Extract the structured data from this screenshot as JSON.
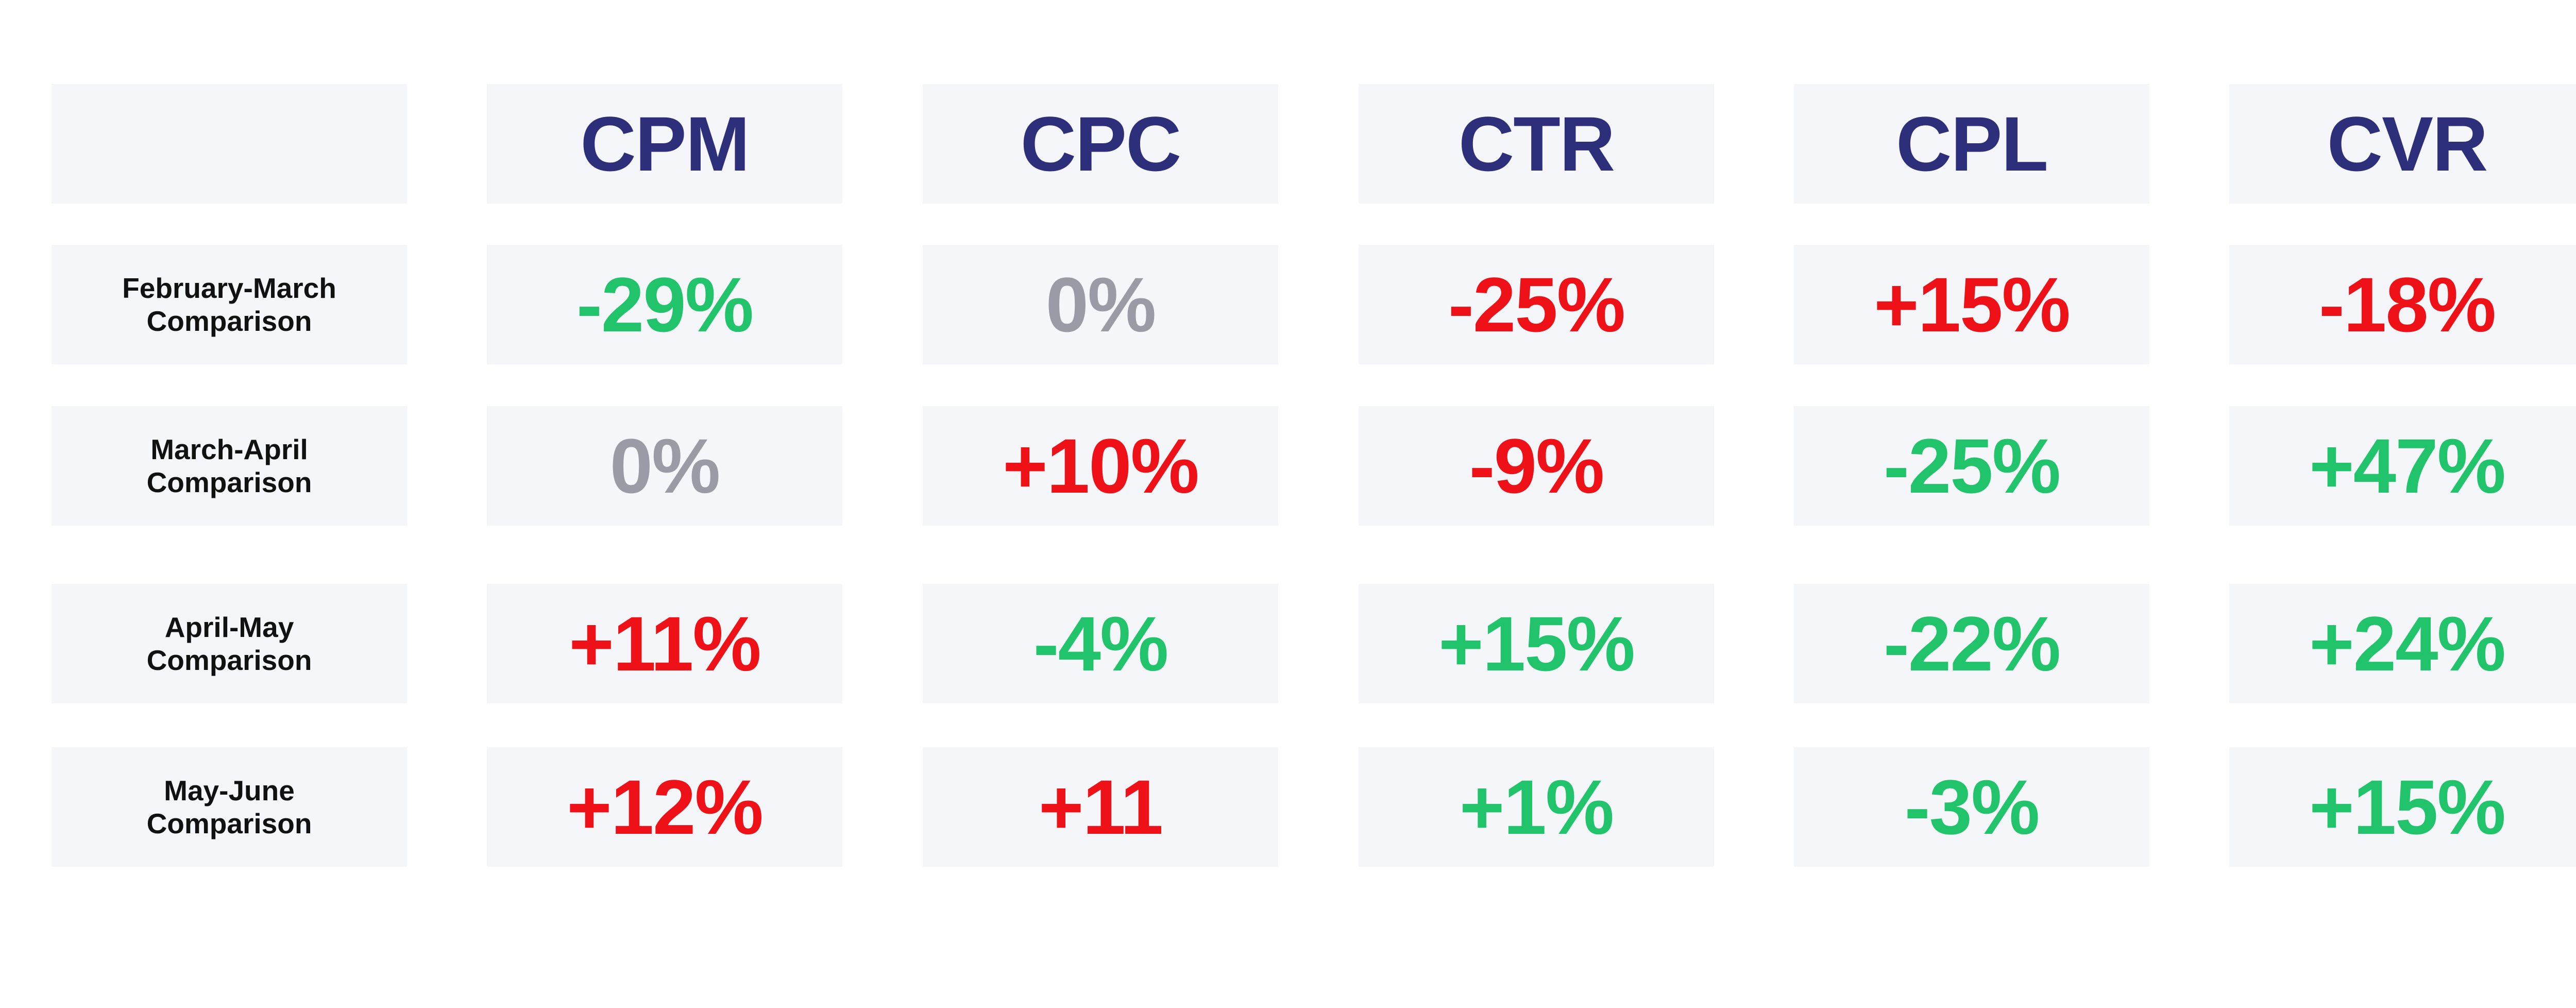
{
  "colors": {
    "header": "#2e2f7a",
    "positive": "#21c46b",
    "negative": "#ef1118",
    "neutral": "#9a9ba4",
    "cell_background": "#f5f6fa",
    "label": "#111111"
  },
  "chart_data": {
    "type": "table",
    "columns": [
      "CPM",
      "CPC",
      "CTR",
      "CPL",
      "CVR"
    ],
    "rows": [
      {
        "label": "February-March\nComparison",
        "cells": [
          {
            "text": "-29%",
            "value": -29,
            "tone": "green"
          },
          {
            "text": "0%",
            "value": 0,
            "tone": "gray"
          },
          {
            "text": "-25%",
            "value": -25,
            "tone": "red"
          },
          {
            "text": "+15%",
            "value": 15,
            "tone": "red"
          },
          {
            "text": "-18%",
            "value": -18,
            "tone": "red"
          }
        ]
      },
      {
        "label": "March-April\nComparison",
        "cells": [
          {
            "text": "0%",
            "value": 0,
            "tone": "gray"
          },
          {
            "text": "+10%",
            "value": 10,
            "tone": "red"
          },
          {
            "text": "-9%",
            "value": -9,
            "tone": "red"
          },
          {
            "text": "-25%",
            "value": -25,
            "tone": "green"
          },
          {
            "text": "+47%",
            "value": 47,
            "tone": "green"
          }
        ]
      },
      {
        "label": "April-May\nComparison",
        "cells": [
          {
            "text": "+11%",
            "value": 11,
            "tone": "red"
          },
          {
            "text": "-4%",
            "value": -4,
            "tone": "green"
          },
          {
            "text": "+15%",
            "value": 15,
            "tone": "green"
          },
          {
            "text": "-22%",
            "value": -22,
            "tone": "green"
          },
          {
            "text": "+24%",
            "value": 24,
            "tone": "green"
          }
        ]
      },
      {
        "label": "May-June\nComparison",
        "cells": [
          {
            "text": "+12%",
            "value": 12,
            "tone": "red"
          },
          {
            "text": "+11",
            "value": 11,
            "tone": "red"
          },
          {
            "text": "+1%",
            "value": 1,
            "tone": "green"
          },
          {
            "text": "-3%",
            "value": -3,
            "tone": "green"
          },
          {
            "text": "+15%",
            "value": 15,
            "tone": "green"
          }
        ]
      }
    ]
  }
}
